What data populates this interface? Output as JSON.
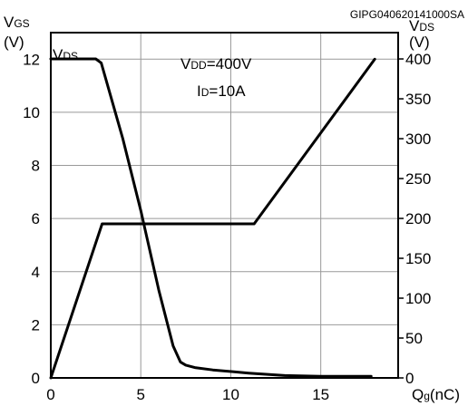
{
  "chart_data": {
    "type": "line",
    "figure_code": "GIPG040620141000SA",
    "annotation_vdd": "VDD=400V",
    "annotation_id": "ID=10A",
    "left_axis": {
      "label": "VGS",
      "unit": "(V)",
      "range": [
        0,
        13
      ],
      "ticks": [
        "0",
        "2",
        "4",
        "6",
        "8",
        "10",
        "12"
      ]
    },
    "right_axis": {
      "label": "VDS",
      "unit": "(V)",
      "range": [
        0,
        433
      ],
      "ticks": [
        "0",
        "50",
        "100",
        "150",
        "200",
        "250",
        "300",
        "350",
        "400"
      ]
    },
    "x_axis": {
      "label": "Qg(nC)",
      "range": [
        0,
        19.3
      ],
      "ticks": [
        "0",
        "5",
        "10",
        "15"
      ]
    },
    "grid": true,
    "series": [
      {
        "name": "VDS",
        "axis": "right",
        "x": [
          0,
          2.5,
          2.8,
          4.0,
          5.0,
          6.0,
          6.8,
          7.2,
          7.5,
          8.0,
          9.0,
          11.0,
          13.0,
          15.0,
          17.8
        ],
        "y": [
          400,
          400,
          395,
          300,
          210,
          110,
          40,
          20,
          16,
          13,
          10,
          6,
          3,
          2,
          2
        ]
      },
      {
        "name": "VGS",
        "axis": "left",
        "x": [
          0,
          2.85,
          11.3,
          18.0
        ],
        "y": [
          0,
          5.8,
          5.8,
          12.0
        ]
      }
    ],
    "series_label": "VDS"
  }
}
